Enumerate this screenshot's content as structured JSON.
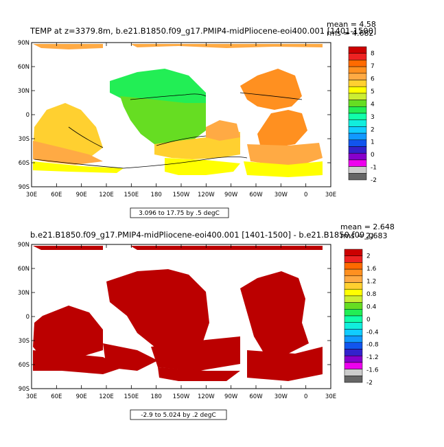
{
  "panels": [
    {
      "title": "TEMP at z=3379.8m, b.e21.B1850.f09_g17.PMIP4-midPliocene-eoi400.001  [1401-1500]",
      "mean_label": "mean = 4.58",
      "rms_label": "rms = 4.682",
      "range_label": "3.096 to 17.75 by .5 degC",
      "colorbar_labels": [
        "8",
        "7",
        "6",
        "5",
        "4",
        "3",
        "2",
        "1",
        "0",
        "-1",
        "-2"
      ],
      "colorbar_colors": [
        "#cc0000",
        "#ee2222",
        "#ff6a00",
        "#ff9020",
        "#ffaa44",
        "#ffd030",
        "#ffff00",
        "#ccee33",
        "#66dd22",
        "#22ee55",
        "#11ffaa",
        "#11eedd",
        "#11ccff",
        "#1199ff",
        "#1155ee",
        "#3322cc",
        "#8800cc",
        "#ee00ee",
        "#cccccc",
        "#666666"
      ],
      "map_colors": {
        "warm": "#ff9020",
        "mid": "#ffaa44",
        "cool": "#ffd030",
        "yellow": "#ffff00",
        "green": "#66dd22",
        "greenlight": "#22ee55"
      }
    },
    {
      "title": "b.e21.B1850.f09_g17.PMIP4-midPliocene-eoi400.001  [1401-1500] - b.e21.B1850.f09_g",
      "mean_label": "mean = 2.648",
      "rms_label": "rms = 2.683",
      "range_label": "-2.9 to 5.024 by .2 degC",
      "colorbar_labels": [
        "2",
        "1.6",
        "1.2",
        "0.8",
        "0.4",
        "0",
        "-0.4",
        "-0.8",
        "-1.2",
        "-1.6",
        "-2"
      ],
      "colorbar_colors": [
        "#cc0000",
        "#ee2222",
        "#ff6a00",
        "#ff9020",
        "#ffaa44",
        "#ffd030",
        "#ffff00",
        "#ccee33",
        "#66dd22",
        "#22ee55",
        "#11ffaa",
        "#11eedd",
        "#11ccff",
        "#1199ff",
        "#1155ee",
        "#3322cc",
        "#8800cc",
        "#ee00ee",
        "#cccccc",
        "#666666"
      ],
      "map_colors": {
        "fill": "#bb0000"
      }
    }
  ],
  "axes": {
    "lat_labels": [
      "90N",
      "60N",
      "30N",
      "0",
      "30S",
      "60S",
      "90S"
    ],
    "lon_labels": [
      "30E",
      "60E",
      "90E",
      "120E",
      "150E",
      "180",
      "150W",
      "120W",
      "90W",
      "60W",
      "30W",
      "0",
      "30E"
    ]
  }
}
